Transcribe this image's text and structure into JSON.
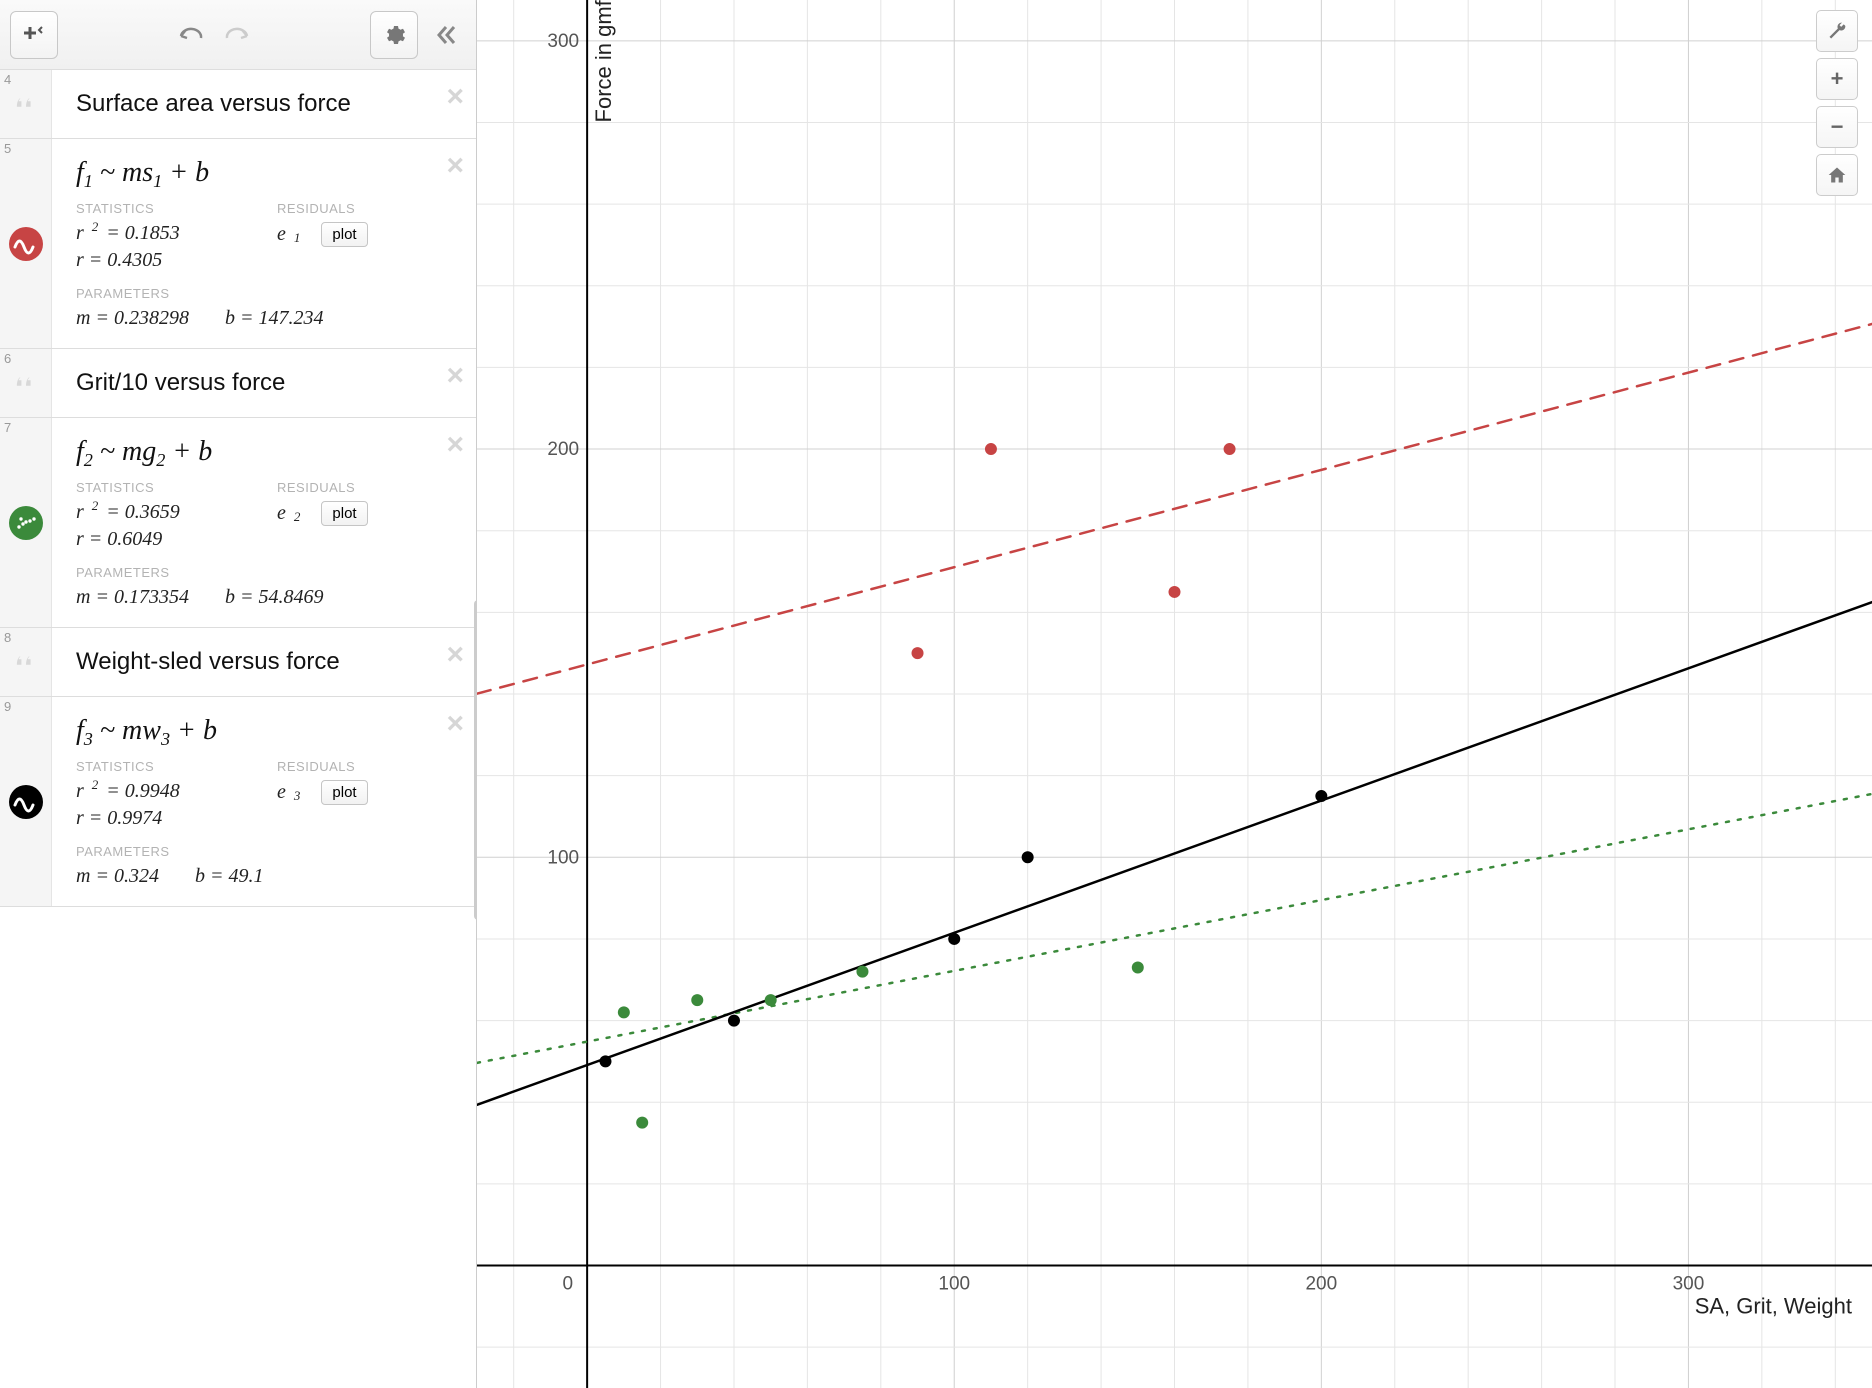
{
  "sidebar": {
    "items": [
      {
        "index": "4",
        "type": "note",
        "text": "Surface area versus force"
      },
      {
        "index": "5",
        "type": "regression",
        "formula_lhs": "f",
        "formula_lhs_sub": "1",
        "formula_rhs_var": "s",
        "formula_rhs_sub": "1",
        "icon_color": "#c74444",
        "stats_label": "STATISTICS",
        "r2": "r² = 0.1853",
        "r": "r = 0.4305",
        "residuals_label": "RESIDUALS",
        "residual_var": "e",
        "residual_sub": "1",
        "plot_label": "plot",
        "params_label": "PARAMETERS",
        "m": "m = 0.238298",
        "b": "b = 147.234"
      },
      {
        "index": "6",
        "type": "note",
        "text": "Grit/10 versus force"
      },
      {
        "index": "7",
        "type": "regression",
        "formula_lhs": "f",
        "formula_lhs_sub": "2",
        "formula_rhs_var": "g",
        "formula_rhs_sub": "2",
        "icon_color": "#3b8a3b",
        "stats_label": "STATISTICS",
        "r2": "r² = 0.3659",
        "r": "r = 0.6049",
        "residuals_label": "RESIDUALS",
        "residual_var": "e",
        "residual_sub": "2",
        "plot_label": "plot",
        "params_label": "PARAMETERS",
        "m": "m = 0.173354",
        "b": "b = 54.8469"
      },
      {
        "index": "8",
        "type": "note",
        "text": "Weight-sled versus force"
      },
      {
        "index": "9",
        "type": "regression",
        "formula_lhs": "f",
        "formula_lhs_sub": "3",
        "formula_rhs_var": "w",
        "formula_rhs_sub": "3",
        "icon_color": "#000000",
        "stats_label": "STATISTICS",
        "r2": "r² = 0.9948",
        "r": "r = 0.9974",
        "residuals_label": "RESIDUALS",
        "residual_var": "e",
        "residual_sub": "3",
        "plot_label": "plot",
        "params_label": "PARAMETERS",
        "m": "m = 0.324",
        "b": "b = 49.1"
      }
    ]
  },
  "graph": {
    "x_label": "SA, Grit, Weight",
    "y_label": "Force in gmf",
    "xlim": [
      -30,
      350
    ],
    "ylim": [
      -30,
      310
    ],
    "x_ticks": [
      0,
      100,
      200,
      300
    ],
    "y_ticks": [
      100,
      200,
      300
    ],
    "origin_label": "0",
    "grid_step": 20,
    "grid_color": "#e5e5e5",
    "grid_major_color": "#d0d0d0",
    "axis_color": "#000000",
    "background_color": "#ffffff",
    "series": [
      {
        "name": "surface-area",
        "color": "#c74444",
        "line_style": "dashed",
        "line_m": 0.238298,
        "line_b": 147.234,
        "points": [
          [
            90,
            150
          ],
          [
            110,
            200
          ],
          [
            160,
            165
          ],
          [
            175,
            200
          ]
        ]
      },
      {
        "name": "grit",
        "color": "#3b8a3b",
        "line_style": "dotted",
        "line_m": 0.173354,
        "line_b": 54.8469,
        "points": [
          [
            10,
            62
          ],
          [
            15,
            35
          ],
          [
            30,
            65
          ],
          [
            50,
            65
          ],
          [
            75,
            72
          ],
          [
            150,
            73
          ]
        ]
      },
      {
        "name": "weight",
        "color": "#000000",
        "line_style": "solid",
        "line_m": 0.324,
        "line_b": 49.1,
        "points": [
          [
            5,
            50
          ],
          [
            40,
            60
          ],
          [
            100,
            80
          ],
          [
            120,
            100
          ],
          [
            200,
            115
          ]
        ]
      }
    ],
    "marker_radius": 6,
    "line_width": 2.5
  }
}
